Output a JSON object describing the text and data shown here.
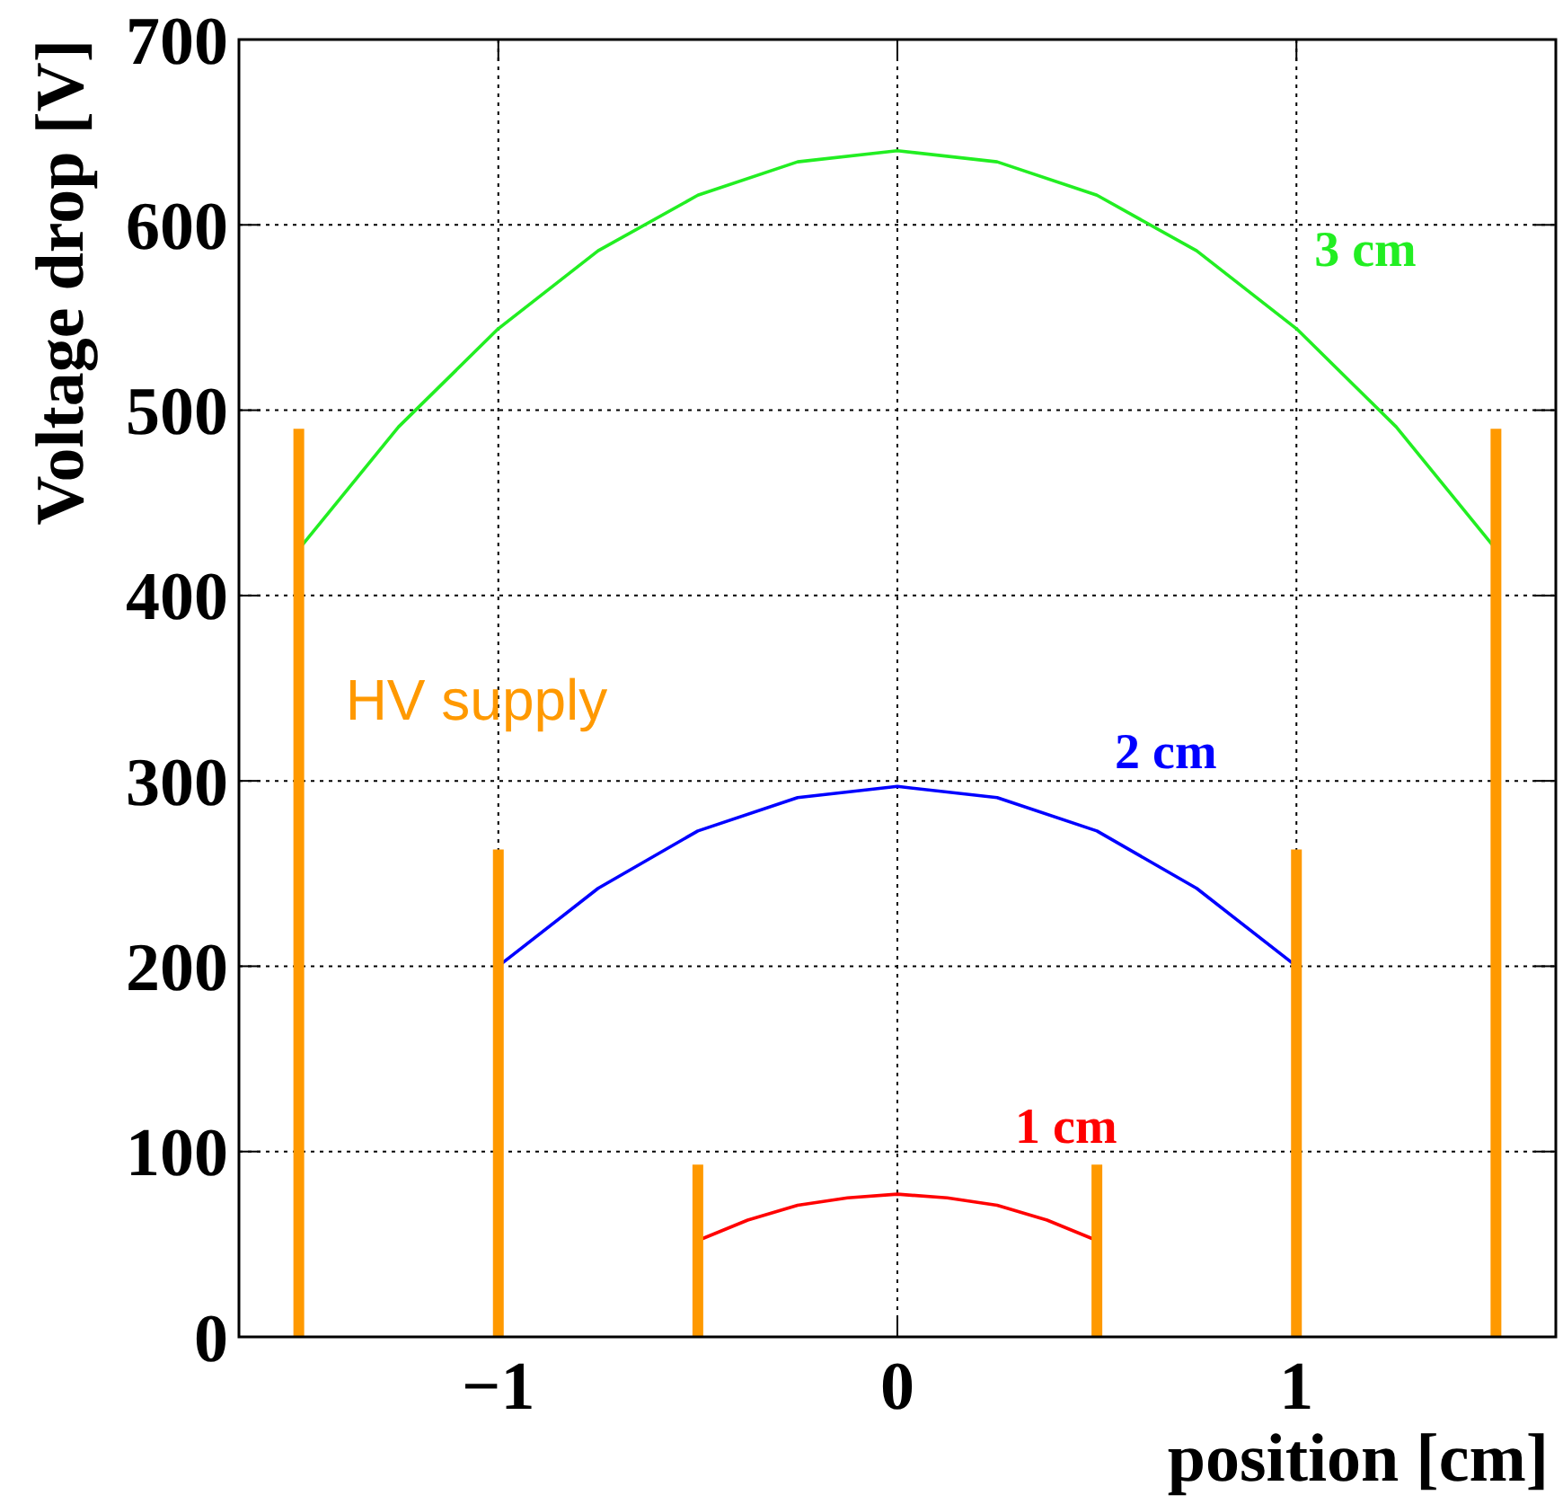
{
  "chart_data": {
    "type": "line",
    "xlabel": "position [cm]",
    "ylabel": "Voltage drop [V]",
    "xlim": [
      -1.65,
      1.65
    ],
    "xticks": [
      {
        "value": -1,
        "label": "−1"
      },
      0,
      1
    ],
    "ylim": [
      0,
      700
    ],
    "yticks": [
      0,
      100,
      200,
      300,
      400,
      500,
      600,
      700
    ],
    "grid": true,
    "marker": "none",
    "line_style": "solid",
    "series": [
      {
        "name": "3 cm",
        "color": "#22ee22",
        "x": [
          -1.5,
          -1.25,
          -1,
          -0.75,
          -0.5,
          -0.25,
          0,
          0.25,
          0.5,
          0.75,
          1,
          1.25,
          1.5
        ],
        "values": [
          425,
          491,
          544,
          586,
          616,
          634,
          640,
          634,
          616,
          586,
          544,
          491,
          425
        ]
      },
      {
        "name": "2 cm",
        "color": "#0000ff",
        "x": [
          -1,
          -0.75,
          -0.5,
          -0.25,
          0,
          0.25,
          0.5,
          0.75,
          1
        ],
        "values": [
          200,
          242,
          273,
          291,
          297,
          291,
          273,
          242,
          200
        ]
      },
      {
        "name": "1 cm",
        "color": "#ff0000",
        "x": [
          -0.5,
          -0.375,
          -0.25,
          -0.125,
          0,
          0.125,
          0.25,
          0.375,
          0.5
        ],
        "values": [
          52,
          63,
          71,
          75,
          77,
          75,
          71,
          63,
          52
        ]
      },
      {
        "name": "HV supply",
        "color": "#ff9900",
        "x": [
          -1.5,
          -1.5,
          null,
          -1,
          -1,
          null,
          -0.5,
          -0.5,
          null,
          0.5,
          0.5,
          null,
          1,
          1,
          null,
          1.5,
          1.5
        ],
        "values": [
          0,
          490,
          null,
          0,
          263,
          null,
          0,
          93,
          null,
          0,
          93,
          null,
          0,
          263,
          null,
          0,
          490
        ]
      }
    ]
  }
}
